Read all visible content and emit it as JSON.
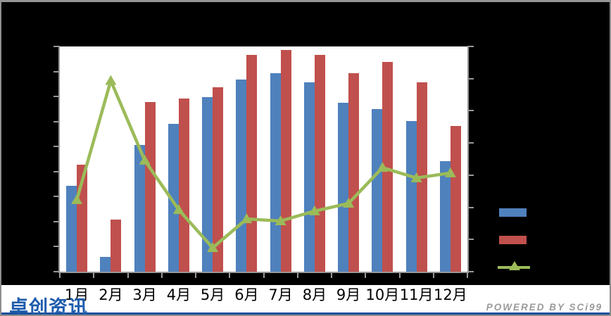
{
  "chart_data": {
    "type": "bar",
    "subtype": "grouped-bars-with-line-overlay",
    "title": "",
    "categories": [
      "1月",
      "2月",
      "3月",
      "4月",
      "5月",
      "6月",
      "7月",
      "8月",
      "9月",
      "10月",
      "11月",
      "12月"
    ],
    "series": [
      {
        "name": "series-1-bar-blue",
        "type": "bar",
        "color": "#4F81BD",
        "values_pct_of_plot_height": [
          38.1,
          6.6,
          56.2,
          65.6,
          77.5,
          85.3,
          88.1,
          84.1,
          75.0,
          72.2,
          66.9,
          49.1
        ]
      },
      {
        "name": "series-2-bar-red",
        "type": "bar",
        "color": "#C0504D",
        "values_pct_of_plot_height": [
          47.5,
          23.1,
          75.3,
          76.9,
          81.9,
          96.2,
          98.4,
          96.2,
          88.1,
          93.1,
          84.1,
          64.7
        ]
      },
      {
        "name": "series-3-line-green",
        "type": "line",
        "marker": "triangle-up",
        "color": "#9BBB59",
        "values_pct_of_plot_height": [
          31.9,
          84.8,
          49.4,
          27.5,
          10.6,
          23.4,
          22.5,
          26.9,
          30.3,
          46.2,
          41.6,
          43.8
        ]
      }
    ],
    "axes": {
      "x": {
        "tick_marks": 13,
        "labels_from": "categories"
      },
      "left_y": {
        "tick_marks": 10,
        "tick_labels_visible": false
      },
      "right_y": {
        "tick_marks": 8,
        "tick_labels_visible": false
      }
    },
    "legend": {
      "position": "right",
      "labels_visible": false
    },
    "plot_background": "#FFFFFF",
    "chart_background": "#000000",
    "grid": false
  },
  "footer": {
    "logo_text": "卓创资讯",
    "powered_by": "POWERED BY SCi99"
  },
  "colors": {
    "bar_blue": "#4F81BD",
    "bar_red": "#C0504D",
    "line_green": "#9BBB59",
    "axis_gray": "#989898",
    "logo_blue": "#1E5CAD",
    "footer_line_blue": "#1A4F9C",
    "powered_by_gray": "#9A9A9A",
    "x_label_black": "#000000"
  }
}
